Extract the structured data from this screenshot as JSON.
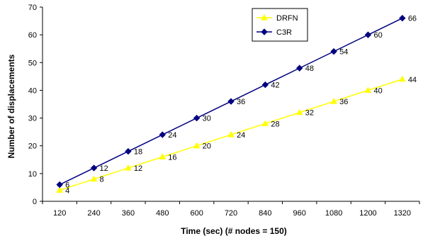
{
  "chart_data": {
    "type": "line",
    "title": "",
    "xlabel": "Time (sec) (# nodes = 150)",
    "ylabel": "Number of displacements",
    "x": [
      120,
      240,
      360,
      480,
      600,
      720,
      840,
      960,
      1080,
      1200,
      1320
    ],
    "ylim": [
      0,
      70
    ],
    "yticks": [
      0,
      10,
      20,
      30,
      40,
      50,
      60,
      70
    ],
    "grid": false,
    "legend_position": "top-right",
    "series": [
      {
        "name": "DRFN",
        "color": "#ffff00",
        "marker": "triangle",
        "values": [
          4,
          8,
          12,
          16,
          20,
          24,
          28,
          32,
          36,
          40,
          44
        ]
      },
      {
        "name": "C3R",
        "color": "#000080",
        "marker": "diamond",
        "values": [
          6,
          12,
          18,
          24,
          30,
          36,
          42,
          48,
          54,
          60,
          66
        ]
      }
    ]
  }
}
